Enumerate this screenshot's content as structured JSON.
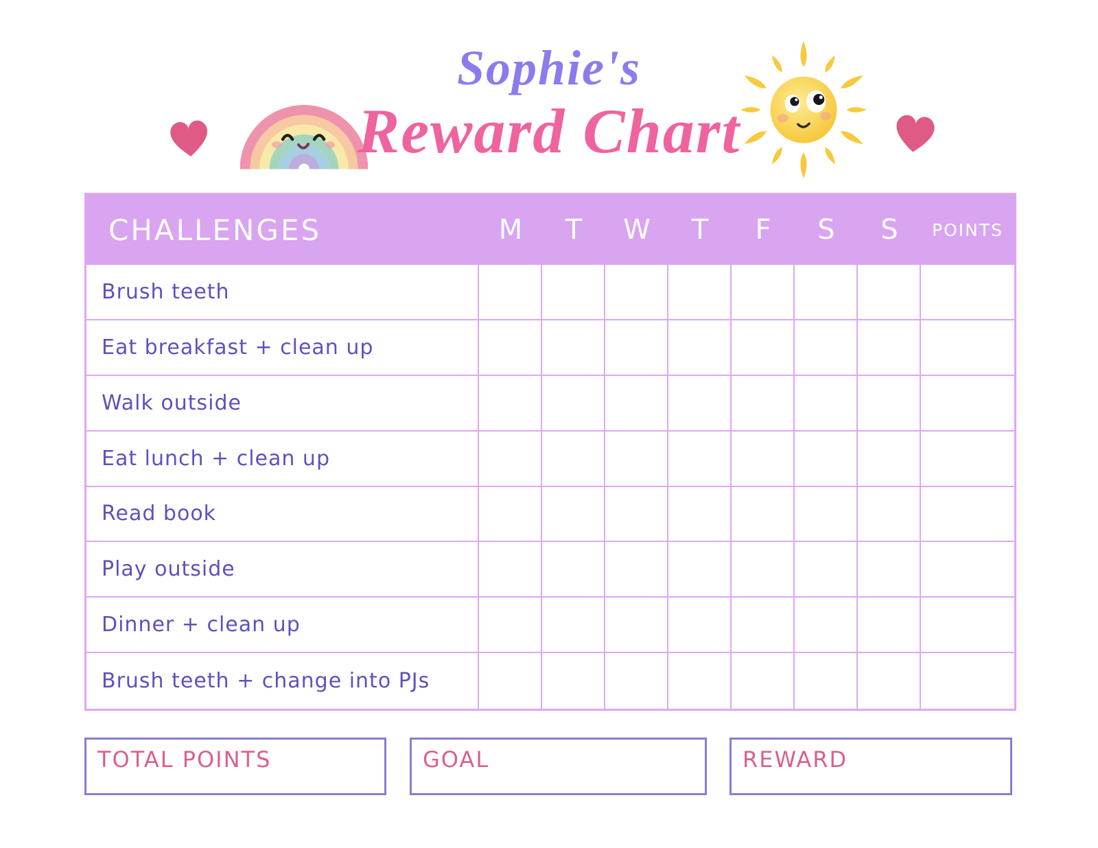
{
  "title": {
    "line1": "Sophie's",
    "line2": "Reward Chart"
  },
  "table": {
    "header": {
      "challenges": "CHALLENGES",
      "days": [
        "M",
        "T",
        "W",
        "T",
        "F",
        "S",
        "S"
      ],
      "points": "POINTS"
    },
    "rows": [
      "Brush teeth",
      "Eat breakfast + clean up",
      "Walk outside",
      "Eat lunch + clean up",
      "Read book",
      "Play outside",
      "Dinner + clean up",
      "Brush teeth + change into PJs"
    ]
  },
  "footer": {
    "total_points_label": "TOTAL POINTS",
    "goal_label": "GOAL",
    "reward_label": "REWARD"
  },
  "icons": {
    "left_decoration": "heart-icon",
    "title_left_decoration": "rainbow-icon",
    "title_right_decoration": "sun-icon",
    "right_decoration": "heart-icon"
  },
  "colors": {
    "header_bg": "#d9a4f0",
    "grid_line": "#dfa7f1",
    "row_text": "#5c52bd",
    "title_purple": "#8b7ced",
    "title_pink": "#ef639f",
    "footer_label_pink": "#d9608e",
    "footer_box_border": "#887dd2",
    "heart_pink": "#e05a86",
    "sun_yellow": "#f8c93c"
  }
}
